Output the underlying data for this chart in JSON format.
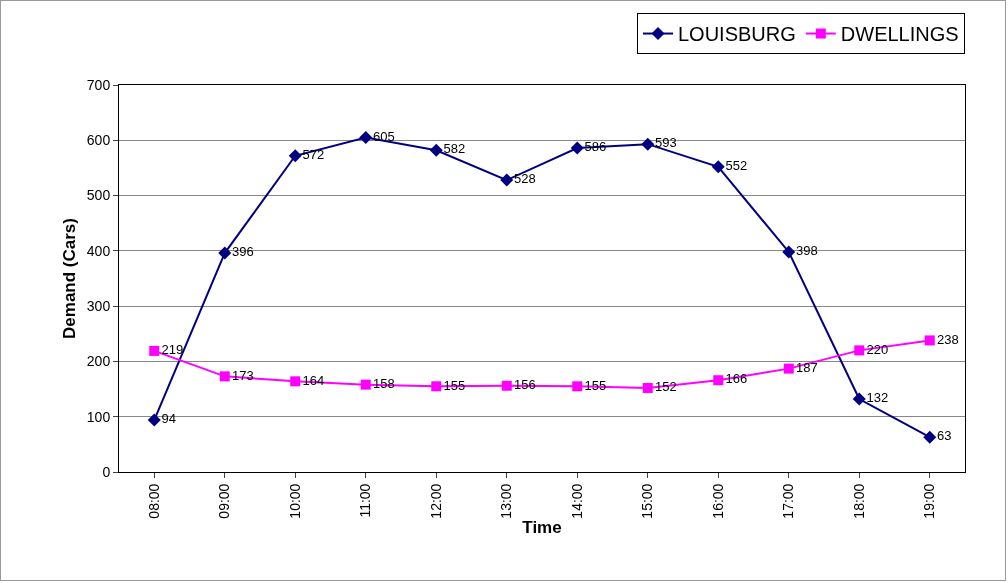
{
  "chart_data": {
    "type": "line",
    "xlabel": "Time",
    "ylabel": "Demand (Cars)",
    "categories": [
      "08:00",
      "09:00",
      "10:00",
      "11:00",
      "12:00",
      "13:00",
      "14:00",
      "15:00",
      "16:00",
      "17:00",
      "18:00",
      "19:00"
    ],
    "series": [
      {
        "name": "LOUISBURG",
        "color": "#000080",
        "marker": "diamond",
        "values": [
          94,
          396,
          572,
          605,
          582,
          528,
          586,
          593,
          552,
          398,
          132,
          63
        ]
      },
      {
        "name": "DWELLINGS",
        "color": "#ff00ff",
        "marker": "square",
        "values": [
          219,
          173,
          164,
          158,
          155,
          156,
          155,
          152,
          166,
          187,
          220,
          238
        ]
      }
    ],
    "ylim": [
      0,
      700
    ],
    "yticks": [
      0,
      100,
      200,
      300,
      400,
      500,
      600,
      700
    ],
    "grid": "y",
    "legend": "top right",
    "data_labels": true,
    "line_style": "solid"
  }
}
